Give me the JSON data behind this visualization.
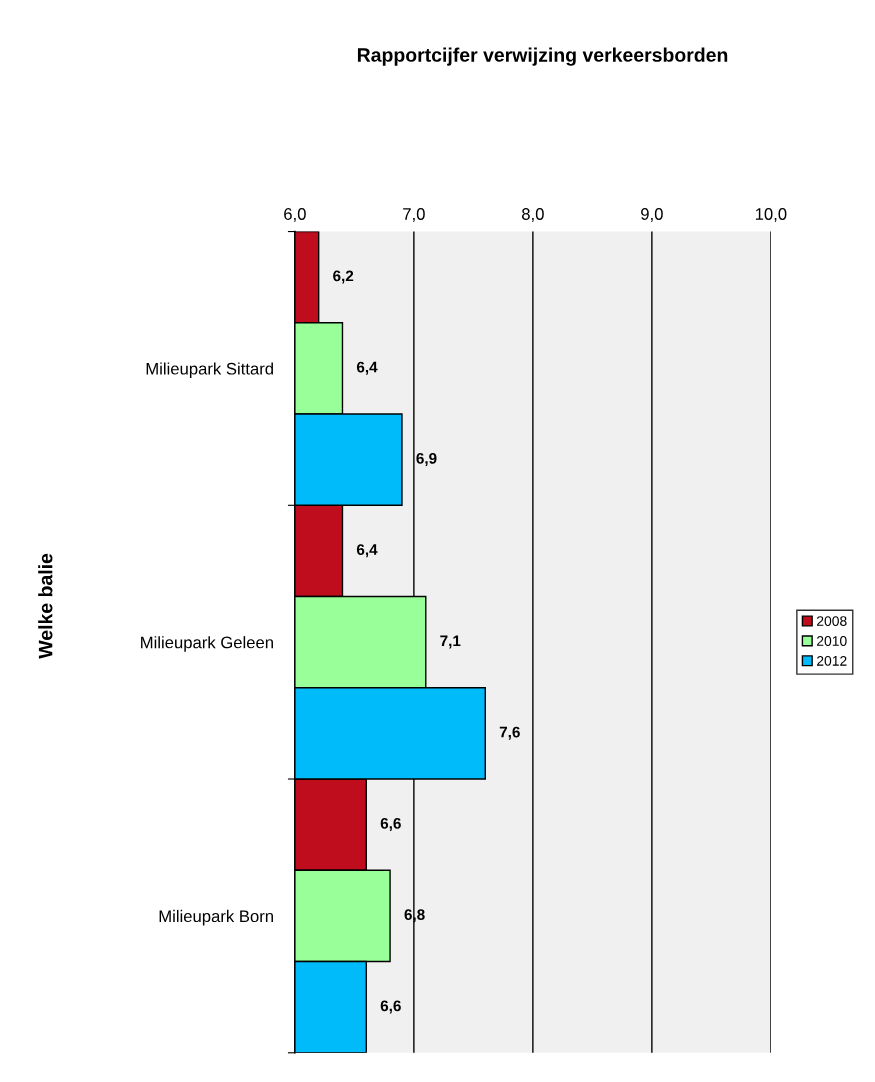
{
  "chart_data": {
    "type": "bar",
    "orientation": "horizontal",
    "title": "Rapportcijfer verwijzing verkeersborden",
    "ylabel": "Welke balie",
    "categories": [
      "Milieupark Sittard",
      "Milieupark Geleen",
      "Milieupark Born"
    ],
    "series": [
      {
        "name": "2008",
        "color": "#c00d1e",
        "values": [
          6.2,
          6.4,
          6.6
        ],
        "value_labels": [
          "6,2",
          "6,4",
          "6,6"
        ]
      },
      {
        "name": "2010",
        "color": "#99ff99",
        "values": [
          6.4,
          7.1,
          6.8
        ],
        "value_labels": [
          "6,4",
          "7,1",
          "6,8"
        ]
      },
      {
        "name": "2012",
        "color": "#00bbf9",
        "values": [
          6.9,
          7.6,
          6.6
        ],
        "value_labels": [
          "6,9",
          "7,6",
          "6,6"
        ]
      }
    ],
    "xlim": [
      6,
      10
    ],
    "xticks": [
      {
        "value": 6,
        "label": "6,0"
      },
      {
        "value": 7,
        "label": "7,0"
      },
      {
        "value": 8,
        "label": "8,0"
      },
      {
        "value": 9,
        "label": "9,0"
      },
      {
        "value": 10,
        "label": "10,0"
      }
    ],
    "grid": "x",
    "legend": "right"
  }
}
